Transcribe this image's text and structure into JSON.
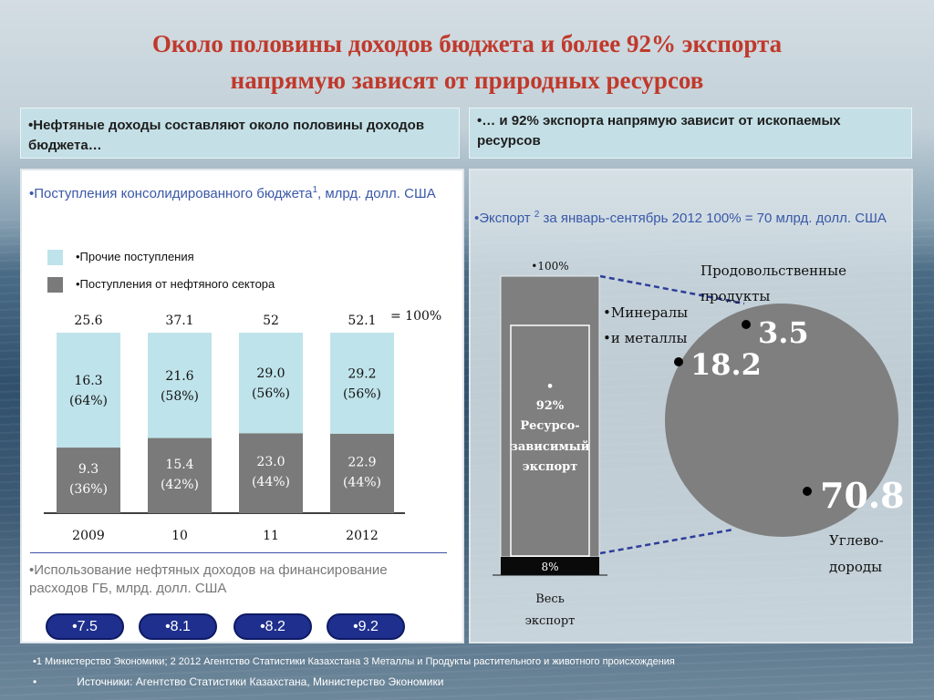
{
  "title": {
    "line1": "Около половины доходов бюджета и более 92% экспорта",
    "line2": "напрямую зависят от природных ресурсов"
  },
  "header_left": "•Нефтяные доходы составляют около половины доходов бюджета…",
  "header_right": "•… и 92% экспорта напрямую зависит от ископаемых ресурсов",
  "left_panel": {
    "title_before_sup": "•Поступления консолидированного бюджета",
    "title_sup": "1",
    "title_after_sup": ", млрд. долл. США",
    "legend": [
      {
        "label": "•Прочие поступления",
        "color": "#bfe3ea"
      },
      {
        "label": "•Поступления от нефтяного сектора",
        "color": "#7a7a7a"
      }
    ],
    "total_label": "= 100%",
    "oil_usage_title": "•Использование нефтяных доходов на финансирование расходов ГБ, млрд. долл. США",
    "oil_usage_values": [
      "•7.5",
      "•8.1",
      "•8.2",
      "•9.2"
    ]
  },
  "right_panel": {
    "title_before_sup": "•Экспорт ",
    "title_sup": "2",
    "title_after_sup": " за январь-сентябрь 2012 100% = 70 млрд. долл. США"
  },
  "chart_data": [
    {
      "type": "bar",
      "stacked": true,
      "categories": [
        "2009",
        "10",
        "11",
        "2012"
      ],
      "totals": [
        "25.6",
        "37.1",
        "52",
        "52.1"
      ],
      "series": [
        {
          "name": "•Поступления от нефтяного сектора",
          "values": [
            9.3,
            15.4,
            23.0,
            22.9
          ],
          "labels": [
            "9.3",
            "15.4",
            "23.0",
            "22.9"
          ],
          "shares": [
            "(36%)",
            "(42%)",
            "(44%)",
            "(44%)"
          ],
          "color": "#7a7a7a"
        },
        {
          "name": "•Прочие поступления",
          "values": [
            16.3,
            21.6,
            29.0,
            29.2
          ],
          "labels": [
            "16.3",
            "21.6",
            "29.0",
            "29.2"
          ],
          "shares": [
            "(64%)",
            "(58%)",
            "(56%)",
            "(56%)"
          ],
          "color": "#bfe3ea"
        }
      ],
      "normalized_to": "100%"
    },
    {
      "type": "bar",
      "stacked": true,
      "categories": [
        "Весь экспорт"
      ],
      "segments": [
        {
          "label": "92% Ресурсо-зависимый экспорт",
          "value": 92,
          "color": "#7f7f7f"
        },
        {
          "label": "8%",
          "value": 8,
          "color": "#0a0a0a"
        }
      ],
      "top_label": "•100%",
      "inner_label_lines": [
        "•",
        "92%",
        "Ресурсо-",
        "зависимый",
        "экспорт"
      ],
      "x_label_lines": [
        "Весь",
        "экспорт"
      ]
    },
    {
      "type": "pie",
      "color": "#7f7f7f",
      "slices": [
        {
          "label": "Продовольственные продукты",
          "value": 3.5,
          "display": "3.5"
        },
        {
          "label": "Минералы и металлы",
          "value": 18.2,
          "display": "18.2"
        },
        {
          "label": "Углеводороды",
          "value": 70.8,
          "display": "70.8"
        }
      ],
      "label_text": {
        "food": [
          "Продовольственные",
          "продукты"
        ],
        "minerals": [
          "•Минералы",
          "•и металлы"
        ],
        "hydro": [
          "Углево-",
          "дороды"
        ]
      },
      "bullet": "•"
    }
  ],
  "footnotes": {
    "line1": "•1 Министерство Экономики; 2 2012 Агентство Статистики Казахстана 3 Металлы и Продукты растительного и животного происхождения",
    "bullet": "•",
    "line2": "Источники: Агентство Статистики Казахстана, Министерство Экономики"
  }
}
